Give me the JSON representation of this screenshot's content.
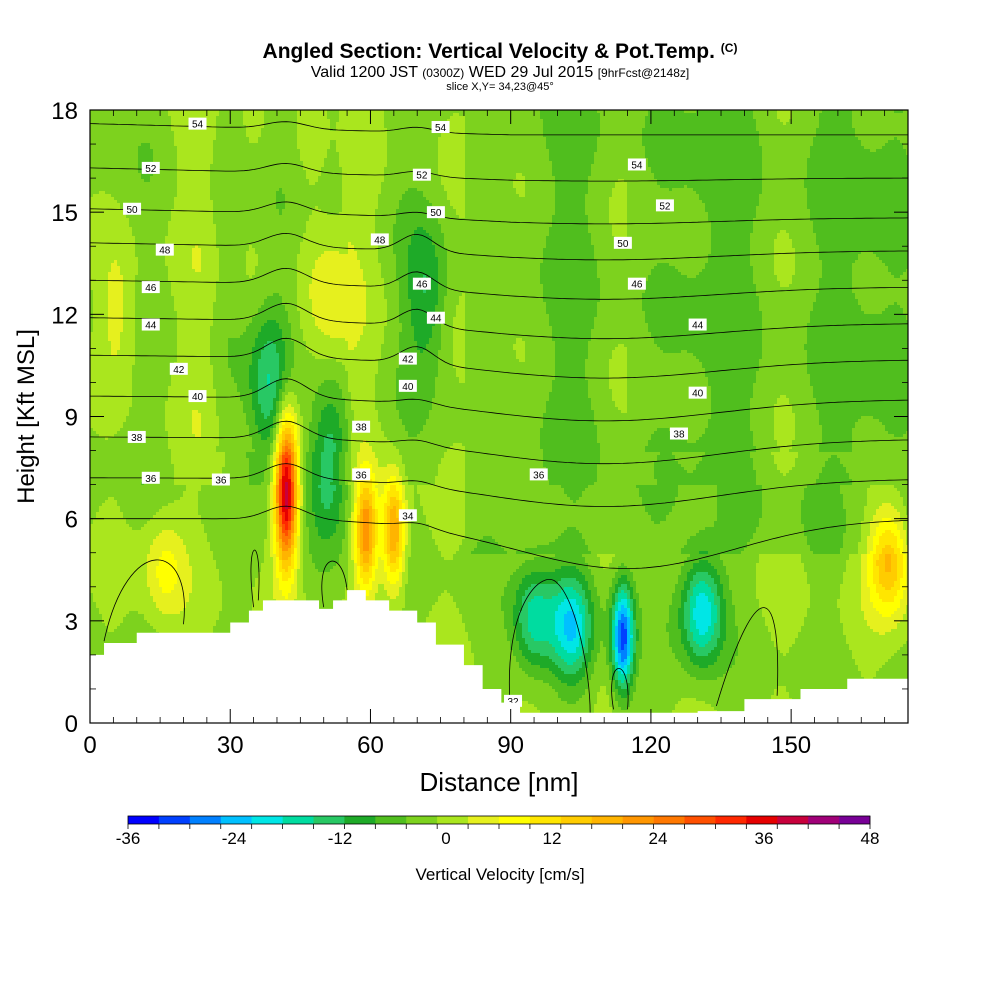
{
  "header": {
    "title": "Angled Section: Vertical Velocity & Pot.Temp.",
    "copyright": "(C)",
    "valid_prefix": "Valid 1200 JST",
    "valid_utc": "(0300Z)",
    "valid_date": "WED 29 Jul 2015",
    "forecast": "[9hrFcst@2148z]",
    "slice": "slice X,Y= 34,23@45°"
  },
  "chart_data": {
    "type": "heatmap",
    "title": "Angled Section: Vertical Velocity & Pot.Temp.",
    "xlabel": "Distance [nm]",
    "ylabel": "Height [Kft MSL]",
    "xlim": [
      0,
      175
    ],
    "ylim": [
      0,
      18
    ],
    "x_ticks": [
      "0",
      "30",
      "60",
      "90",
      "120",
      "150"
    ],
    "y_ticks": [
      "0",
      "3",
      "6",
      "9",
      "12",
      "15",
      "18"
    ],
    "x_tick_values": [
      0,
      30,
      60,
      90,
      120,
      150
    ],
    "y_tick_values": [
      0,
      3,
      6,
      9,
      12,
      15,
      18
    ],
    "colorbar": {
      "label": "Vertical Velocity [cm/s]",
      "tick_labels": [
        "-36",
        "-24",
        "-12",
        "0",
        "12",
        "24",
        "36",
        "48"
      ],
      "tick_values": [
        -36,
        -24,
        -12,
        0,
        12,
        24,
        36,
        48
      ],
      "min": -36,
      "max": 48,
      "step": 4,
      "colors": [
        "#0000ff",
        "#0040ff",
        "#0080ff",
        "#00c0ff",
        "#00e6e6",
        "#00dca0",
        "#28c864",
        "#1eaa28",
        "#50be1e",
        "#7dd21e",
        "#aae61e",
        "#e6f01e",
        "#ffff00",
        "#ffe600",
        "#ffcc00",
        "#ffb400",
        "#ff9600",
        "#ff7800",
        "#ff5000",
        "#ff2800",
        "#e60000",
        "#c8003c",
        "#a00078",
        "#780096"
      ]
    },
    "theta_contours": {
      "series_name": "Pot.Temp.",
      "labels": [
        "32",
        "34",
        "36",
        "36",
        "36",
        "36",
        "38",
        "38",
        "38",
        "40",
        "40",
        "40",
        "42",
        "42",
        "44",
        "44",
        "44",
        "46",
        "46",
        "46",
        "48",
        "48",
        "50",
        "50",
        "50",
        "52",
        "52",
        "52",
        "54",
        "54",
        "54"
      ],
      "levels_at_left_edge": [
        {
          "theta": 34,
          "height": 6.0
        },
        {
          "theta": 36,
          "height": 7.2
        },
        {
          "theta": 38,
          "height": 8.4
        },
        {
          "theta": 40,
          "height": 9.6
        },
        {
          "theta": 42,
          "height": 10.8
        },
        {
          "theta": 44,
          "height": 11.9
        },
        {
          "theta": 46,
          "height": 13.0
        },
        {
          "theta": 48,
          "height": 14.1
        },
        {
          "theta": 50,
          "height": 15.1
        },
        {
          "theta": 52,
          "height": 16.3
        },
        {
          "theta": 54,
          "height": 17.6
        }
      ]
    },
    "updrafts": [
      {
        "x": 42,
        "height": 6.8,
        "peak": 47
      },
      {
        "x": 59,
        "height": 5.6,
        "peak": 28
      },
      {
        "x": 65,
        "height": 5.6,
        "peak": 26
      },
      {
        "x": 171,
        "height": 4.8,
        "peak": 22
      },
      {
        "x": 16,
        "height": 4.5,
        "peak": 10
      },
      {
        "x": 52,
        "height": 12.5,
        "peak": 8
      },
      {
        "x": 6,
        "height": 12.0,
        "peak": 7
      }
    ],
    "downdrafts": [
      {
        "x": 114,
        "height": 2.5,
        "peak": -34
      },
      {
        "x": 131,
        "height": 3.3,
        "peak": -24
      },
      {
        "x": 103,
        "height": 2.8,
        "peak": -22
      },
      {
        "x": 95,
        "height": 3.0,
        "peak": -18
      },
      {
        "x": 38,
        "height": 9.8,
        "peak": -14
      },
      {
        "x": 51,
        "height": 7.6,
        "peak": -14
      },
      {
        "x": 72,
        "height": 12.5,
        "peak": -10
      }
    ],
    "terrain": [
      {
        "x": 0,
        "h": 2.0
      },
      {
        "x": 3,
        "h": 2.35
      },
      {
        "x": 10,
        "h": 2.65
      },
      {
        "x": 30,
        "h": 2.95
      },
      {
        "x": 34,
        "h": 3.3
      },
      {
        "x": 37,
        "h": 3.6
      },
      {
        "x": 45,
        "h": 3.6
      },
      {
        "x": 49,
        "h": 3.35
      },
      {
        "x": 52,
        "h": 3.6
      },
      {
        "x": 55,
        "h": 3.9
      },
      {
        "x": 59,
        "h": 3.6
      },
      {
        "x": 64,
        "h": 3.3
      },
      {
        "x": 70,
        "h": 2.95
      },
      {
        "x": 74,
        "h": 2.3
      },
      {
        "x": 80,
        "h": 1.7
      },
      {
        "x": 84,
        "h": 1.0
      },
      {
        "x": 88,
        "h": 0.6
      },
      {
        "x": 92,
        "h": 0.3
      },
      {
        "x": 130,
        "h": 0.35
      },
      {
        "x": 140,
        "h": 0.7
      },
      {
        "x": 152,
        "h": 1.0
      },
      {
        "x": 162,
        "h": 1.3
      },
      {
        "x": 175,
        "h": 1.7
      }
    ]
  }
}
